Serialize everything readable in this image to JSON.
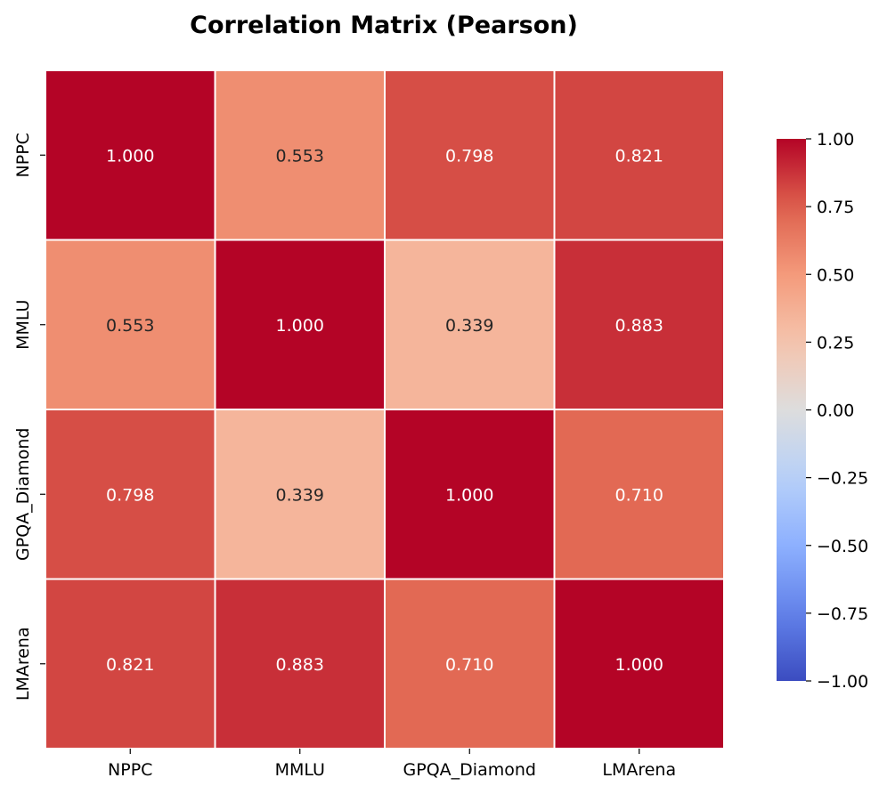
{
  "chart_data": {
    "type": "heatmap",
    "title": "Correlation Matrix (Pearson)",
    "xlabel": "",
    "ylabel": "",
    "x_categories": [
      "NPPC",
      "MMLU",
      "GPQA_Diamond",
      "LMArena"
    ],
    "y_categories": [
      "NPPC",
      "MMLU",
      "GPQA_Diamond",
      "LMArena"
    ],
    "values": [
      [
        1.0,
        0.553,
        0.798,
        0.821
      ],
      [
        0.553,
        1.0,
        0.339,
        0.883
      ],
      [
        0.798,
        0.339,
        1.0,
        0.71
      ],
      [
        0.821,
        0.883,
        0.71,
        1.0
      ]
    ],
    "value_format": "0.000",
    "colormap": "coolwarm",
    "vmin": -1.0,
    "vmax": 1.0,
    "colorbar": {
      "ticks": [
        1.0,
        0.75,
        0.5,
        0.25,
        0.0,
        -0.25,
        -0.5,
        -0.75,
        -1.0
      ],
      "tick_labels": [
        "1.00",
        "0.75",
        "0.50",
        "0.25",
        "0.00",
        "−0.25",
        "−0.50",
        "−0.75",
        "−1.00"
      ]
    }
  }
}
